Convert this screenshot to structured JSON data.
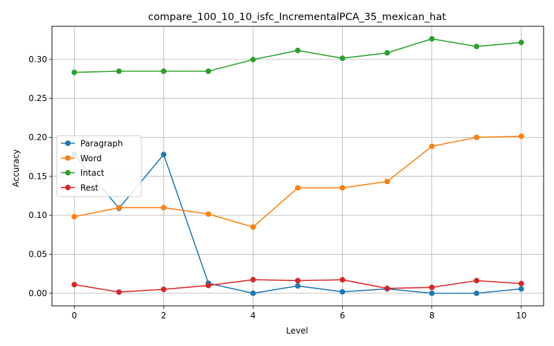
{
  "chart_data": {
    "type": "line",
    "title": "compare_100_10_10_isfc_IncrementalPCA_35_mexican_hat",
    "xlabel": "Level",
    "ylabel": "Accuracy",
    "x": [
      0,
      1,
      2,
      3,
      4,
      5,
      6,
      7,
      8,
      9,
      10
    ],
    "xlim": [
      -0.5,
      10.5
    ],
    "ylim": [
      -0.0162,
      0.3425
    ],
    "xticks": [
      0,
      2,
      4,
      6,
      8,
      10
    ],
    "yticks": [
      0.0,
      0.05,
      0.1,
      0.15,
      0.2,
      0.25,
      0.3
    ],
    "ytick_labels": [
      "0.00",
      "0.05",
      "0.10",
      "0.15",
      "0.20",
      "0.25",
      "0.30"
    ],
    "grid": true,
    "legend_position": "center-left",
    "series": [
      {
        "name": "Paragraph",
        "color": "#1f77b4",
        "values": [
          0.178,
          0.109,
          0.178,
          0.0128,
          0.0,
          0.0094,
          0.0018,
          0.0056,
          0.0,
          0.0,
          0.0056
        ]
      },
      {
        "name": "Word",
        "color": "#ff7f0e",
        "values": [
          0.0982,
          0.1098,
          0.1098,
          0.1016,
          0.0849,
          0.1352,
          0.1352,
          0.1434,
          0.1885,
          0.2,
          0.2014
        ]
      },
      {
        "name": "Intact",
        "color": "#2ca02c",
        "values": [
          0.2834,
          0.2849,
          0.2849,
          0.2849,
          0.2998,
          0.3115,
          0.3015,
          0.3084,
          0.3264,
          0.3166,
          0.3217
        ]
      },
      {
        "name": "Rest",
        "color": "#d62728",
        "values": [
          0.0111,
          0.0015,
          0.005,
          0.0099,
          0.0174,
          0.0162,
          0.0173,
          0.0062,
          0.0075,
          0.0162,
          0.0124
        ]
      }
    ]
  }
}
